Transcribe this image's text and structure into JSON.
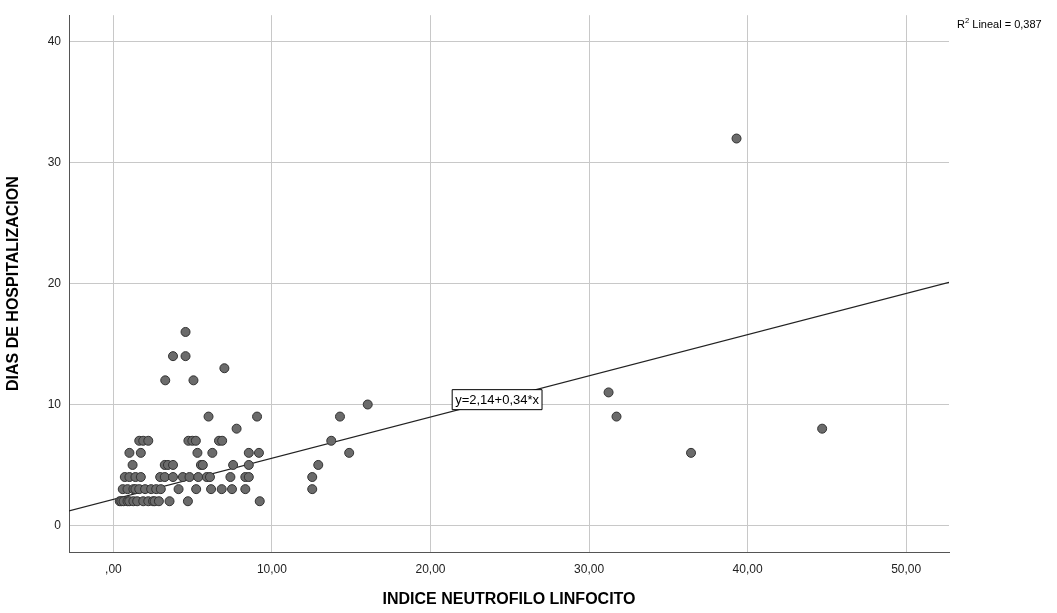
{
  "chart_data": {
    "type": "scatter",
    "xlabel": "INDICE NEUTROFILO LINFOCITO",
    "ylabel": "DIAS DE HOSPITALIZACION",
    "xlim": [
      -2.8,
      52.7
    ],
    "ylim": [
      -2.2,
      42.2
    ],
    "xticks": [
      {
        "value": 0,
        "label": ",00"
      },
      {
        "value": 10,
        "label": "10,00"
      },
      {
        "value": 20,
        "label": "20,00"
      },
      {
        "value": 30,
        "label": "30,00"
      },
      {
        "value": 40,
        "label": "40,00"
      },
      {
        "value": 50,
        "label": "50,00"
      }
    ],
    "yticks": [
      0,
      10,
      20,
      30,
      40
    ],
    "grid": true,
    "marker": "circle",
    "legend": false,
    "series": [
      {
        "color": "#6b6b6b",
        "x": [
          4.55,
          3.76,
          4.55,
          7.0,
          3.27,
          5.05,
          6.0,
          9.06,
          7.77,
          1.63,
          1.88,
          2.2,
          4.73,
          4.98,
          5.2,
          6.66,
          6.86,
          1.01,
          1.73,
          5.3,
          6.24,
          8.54,
          9.18,
          1.21,
          3.24,
          3.44,
          3.76,
          5.52,
          5.64,
          7.55,
          8.54,
          0.72,
          1.01,
          1.39,
          1.73,
          2.95,
          3.24,
          3.76,
          4.38,
          4.8,
          5.35,
          5.89,
          6.09,
          7.38,
          8.32,
          8.54,
          0.59,
          0.89,
          1.26,
          1.39,
          1.63,
          2.0,
          2.38,
          2.7,
          2.99,
          4.11,
          5.22,
          6.16,
          6.83,
          7.48,
          8.32,
          0.4,
          0.5,
          0.64,
          0.89,
          1.0,
          1.26,
          1.5,
          1.88,
          2.2,
          2.5,
          2.6,
          2.87,
          3.54,
          4.7,
          9.23,
          16.04,
          14.29,
          13.74,
          14.87,
          12.92,
          12.54,
          12.54,
          31.23,
          31.73,
          36.43,
          44.7,
          39.3
        ],
        "values": [
          16,
          14,
          14,
          13,
          12,
          12,
          9,
          9,
          8,
          7,
          7,
          7,
          7,
          7,
          7,
          7,
          7,
          6,
          6,
          6,
          6,
          6,
          6,
          5,
          5,
          5,
          5,
          5,
          5,
          5,
          5,
          4,
          4,
          4,
          4,
          4,
          4,
          4,
          4,
          4,
          4,
          4,
          4,
          4,
          4,
          4,
          3,
          3,
          3,
          3,
          3,
          3,
          3,
          3,
          3,
          3,
          3,
          3,
          3,
          3,
          3,
          2,
          2,
          2,
          2,
          2,
          2,
          2,
          2,
          2,
          2,
          2,
          2,
          2,
          2,
          2,
          10,
          9,
          7,
          6,
          5,
          4,
          3,
          11,
          9,
          6,
          8,
          32
        ]
      },
      {
        "type": "line",
        "marker": "none",
        "color": "#222222",
        "x": [
          -2.8,
          52.7
        ],
        "values": [
          1.2,
          20.1
        ]
      }
    ],
    "annotations": [
      {
        "text": "y=2,14+0,34*x",
        "x": 24.2,
        "y": 10.4
      },
      "R$^{2}$ Lineal = 0,387"
    ]
  }
}
